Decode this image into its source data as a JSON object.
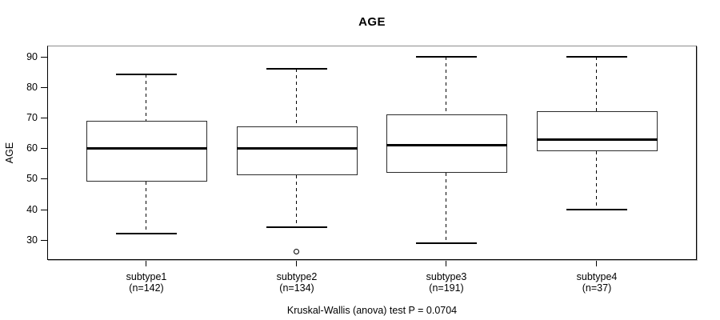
{
  "page": {
    "background": "#ffffff"
  },
  "chart_data": {
    "type": "boxplot",
    "title": "AGE",
    "ylabel": "AGE",
    "xlabel": "",
    "caption": "Kruskal-Wallis (anova) test P = 0.0704",
    "y_ticks": [
      30,
      40,
      50,
      60,
      70,
      80,
      90
    ],
    "ylim": [
      23,
      93.5
    ],
    "grid": false,
    "legend": "none",
    "groups": [
      {
        "label": "subtype1",
        "sublabel": "(n=142)",
        "n": 142,
        "whisker_low": 32,
        "q1": 49,
        "median": 60,
        "q3": 69,
        "whisker_high": 84,
        "outliers": []
      },
      {
        "label": "subtype2",
        "sublabel": "(n=134)",
        "n": 134,
        "whisker_low": 34,
        "q1": 51,
        "median": 60,
        "q3": 67,
        "whisker_high": 86,
        "outliers": [
          26
        ]
      },
      {
        "label": "subtype3",
        "sublabel": "(n=191)",
        "n": 191,
        "whisker_low": 29,
        "q1": 52,
        "median": 61,
        "q3": 71,
        "whisker_high": 90,
        "outliers": []
      },
      {
        "label": "subtype4",
        "sublabel": "(n=37)",
        "n": 37,
        "whisker_low": 40,
        "q1": 59,
        "median": 63,
        "q3": 72,
        "whisker_high": 90,
        "outliers": []
      }
    ],
    "colors": {
      "line": "#000000",
      "frame_top": "#8c8c8c",
      "frame_shadow": "#b2b2b2",
      "box_border": "#2b2b2b",
      "box_fill": "#ffffff",
      "background": "#ffffff"
    }
  }
}
